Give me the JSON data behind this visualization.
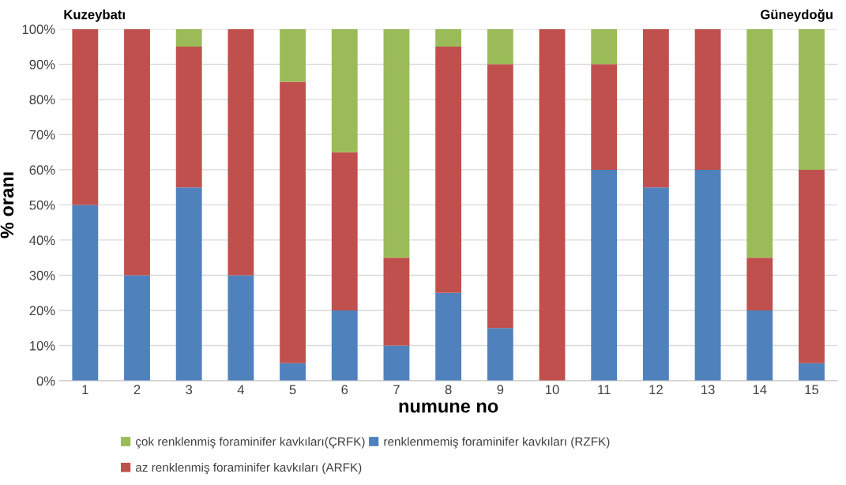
{
  "chart_data": {
    "type": "bar",
    "stacked": true,
    "xlabel": "numune no",
    "ylabel": "% oranı",
    "categories": [
      "1",
      "2",
      "3",
      "4",
      "5",
      "6",
      "7",
      "8",
      "9",
      "10",
      "11",
      "12",
      "13",
      "14",
      "15"
    ],
    "series": [
      {
        "name": "renklenmemiş foraminifer kavkıları (RZFK)",
        "color": "#4f81bd",
        "values": [
          50,
          30,
          55,
          30,
          5,
          20,
          10,
          25,
          15,
          0,
          60,
          55,
          60,
          20,
          5
        ]
      },
      {
        "name": "az renklenmiş foraminifer kavkıları (ARFK)",
        "color": "#c0504d",
        "values": [
          50,
          70,
          40,
          70,
          80,
          45,
          25,
          70,
          75,
          100,
          30,
          45,
          40,
          15,
          55
        ]
      },
      {
        "name": "çok renklenmiş foraminifer kavkıları(ÇRFK)",
        "color": "#9bbb59",
        "values": [
          0,
          0,
          5,
          0,
          15,
          35,
          65,
          5,
          10,
          0,
          10,
          0,
          0,
          65,
          40
        ]
      }
    ],
    "ylim": [
      0,
      100
    ],
    "yticks": [
      {
        "value": 0,
        "label": "0%"
      },
      {
        "value": 10,
        "label": "10%"
      },
      {
        "value": 20,
        "label": "20%"
      },
      {
        "value": 30,
        "label": "30%"
      },
      {
        "value": 40,
        "label": "40%"
      },
      {
        "value": 50,
        "label": "50%"
      },
      {
        "value": 60,
        "label": "60%"
      },
      {
        "value": 70,
        "label": "70%"
      },
      {
        "value": 80,
        "label": "80%"
      },
      {
        "value": 90,
        "label": "90%"
      },
      {
        "value": 100,
        "label": "100%"
      }
    ],
    "grid": "y",
    "legend": "bottom",
    "annotations": [
      "Kuzeybatı",
      "Güneydoğu"
    ]
  }
}
